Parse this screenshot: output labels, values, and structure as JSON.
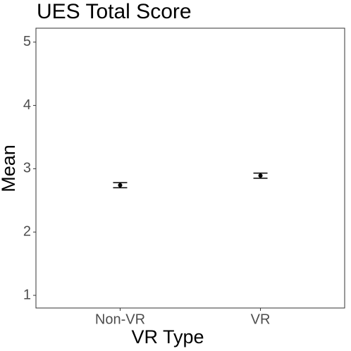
{
  "chart_data": {
    "type": "errorbar",
    "title": "UES Total Score",
    "x_label": "VR Type",
    "y_label": "Mean",
    "categories": [
      "Non-VR",
      "VR"
    ],
    "values": [
      2.74,
      2.89
    ],
    "errors": [
      0.04,
      0.04
    ],
    "color": "#000000",
    "ylim": [
      0.8,
      5.22
    ],
    "yticks": [
      1,
      2,
      3,
      4,
      5
    ],
    "grid": false
  }
}
